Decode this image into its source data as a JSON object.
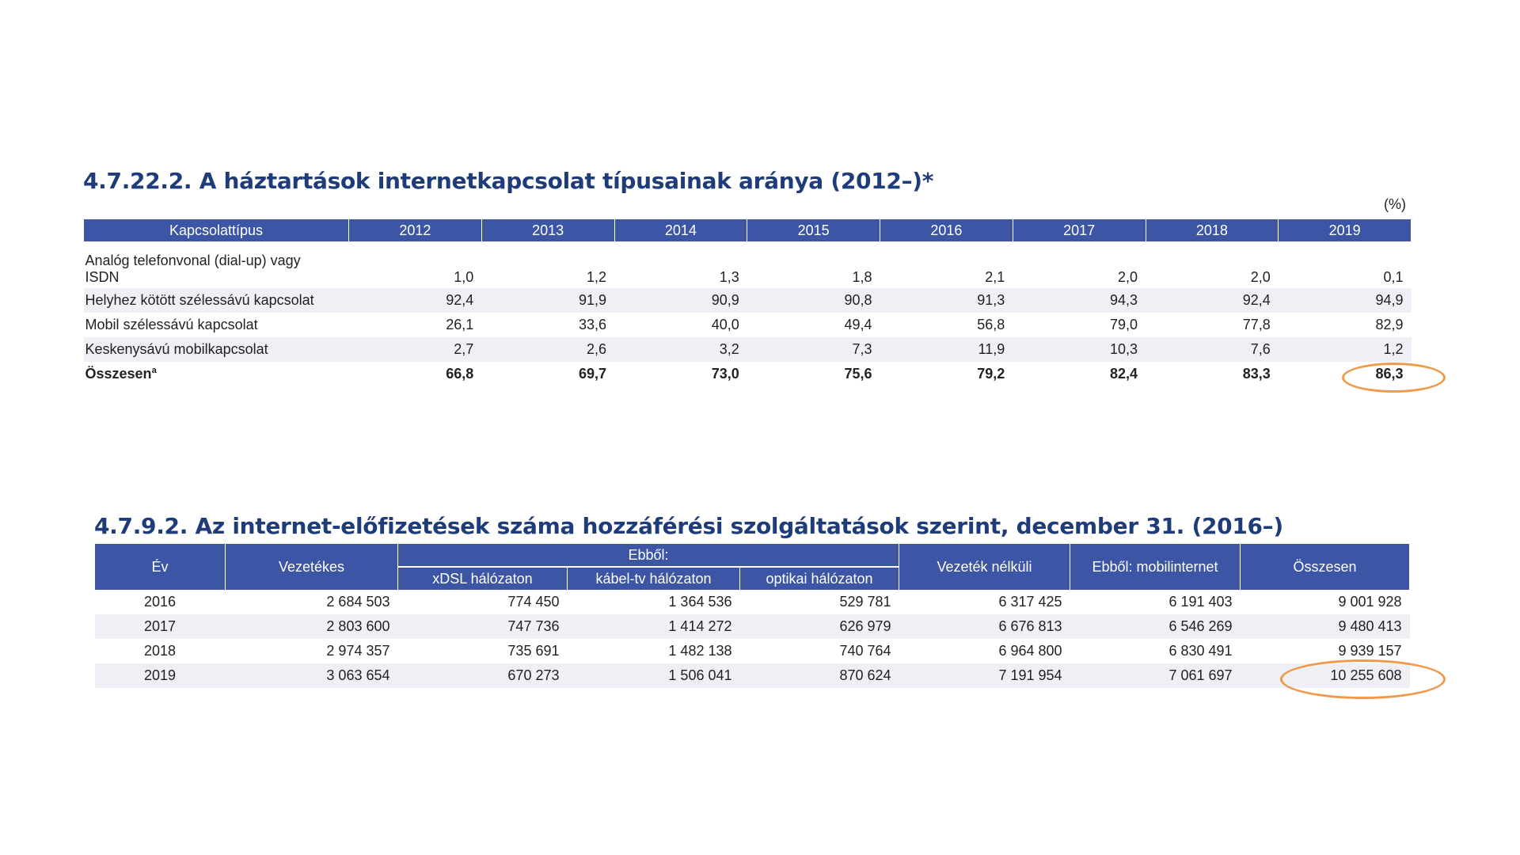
{
  "table1": {
    "title": "4.7.22.2. A háztartások internetkapcsolat típusainak aránya (2012–)*",
    "unit": "(%)",
    "header": [
      "Kapcsolattípus",
      "2012",
      "2013",
      "2014",
      "2015",
      "2016",
      "2017",
      "2018",
      "2019"
    ],
    "rows": [
      {
        "label_line1": "Analóg telefonvonal (dial-up) vagy",
        "label_line2": "ISDN",
        "values": [
          "1,0",
          "1,2",
          "1,3",
          "1,8",
          "2,1",
          "2,0",
          "2,0",
          "0,1"
        ]
      },
      {
        "label": "Helyhez kötött szélessávú kapcsolat",
        "values": [
          "92,4",
          "91,9",
          "90,9",
          "90,8",
          "91,3",
          "94,3",
          "92,4",
          "94,9"
        ]
      },
      {
        "label": "Mobil szélessávú kapcsolat",
        "values": [
          "26,1",
          "33,6",
          "40,0",
          "49,4",
          "56,8",
          "79,0",
          "77,8",
          "82,9"
        ]
      },
      {
        "label": "Keskenysávú mobilkapcsolat",
        "values": [
          "2,7",
          "2,6",
          "3,2",
          "7,3",
          "11,9",
          "10,3",
          "7,6",
          "1,2"
        ]
      },
      {
        "label": "Összesen",
        "sup": "a",
        "values": [
          "66,8",
          "69,7",
          "73,0",
          "75,6",
          "79,2",
          "82,4",
          "83,3",
          "86,3"
        ]
      }
    ]
  },
  "table2": {
    "title": "4.7.9.2. Az internet-előfizetések száma hozzáférési szolgáltatások szerint, december 31. (2016–)",
    "header": {
      "ev": "Év",
      "vezetekes": "Vezetékes",
      "ebbol": "Ebből:",
      "xdsl": "xDSL hálózaton",
      "kabel": "kábel-tv hálózaton",
      "optikai": "optikai hálózaton",
      "vezetek_nelkuli": "Vezeték nélküli",
      "mobil": "Ebből: mobilinternet",
      "osszesen": "Összesen"
    },
    "rows": [
      [
        "2016",
        "2 684 503",
        "774 450",
        "1 364 536",
        "529 781",
        "6 317 425",
        "6 191 403",
        "9 001 928"
      ],
      [
        "2017",
        "2 803 600",
        "747 736",
        "1 414 272",
        "626 979",
        "6 676 813",
        "6 546 269",
        "9 480 413"
      ],
      [
        "2018",
        "2 974 357",
        "735 691",
        "1 482 138",
        "740 764",
        "6 964 800",
        "6 830 491",
        "9 939 157"
      ],
      [
        "2019",
        "3 063 654",
        "670 273",
        "1 506 041",
        "870 624",
        "7 191 954",
        "7 061 697",
        "10 255 608"
      ]
    ]
  },
  "highlight_color": "#ef9a4a"
}
